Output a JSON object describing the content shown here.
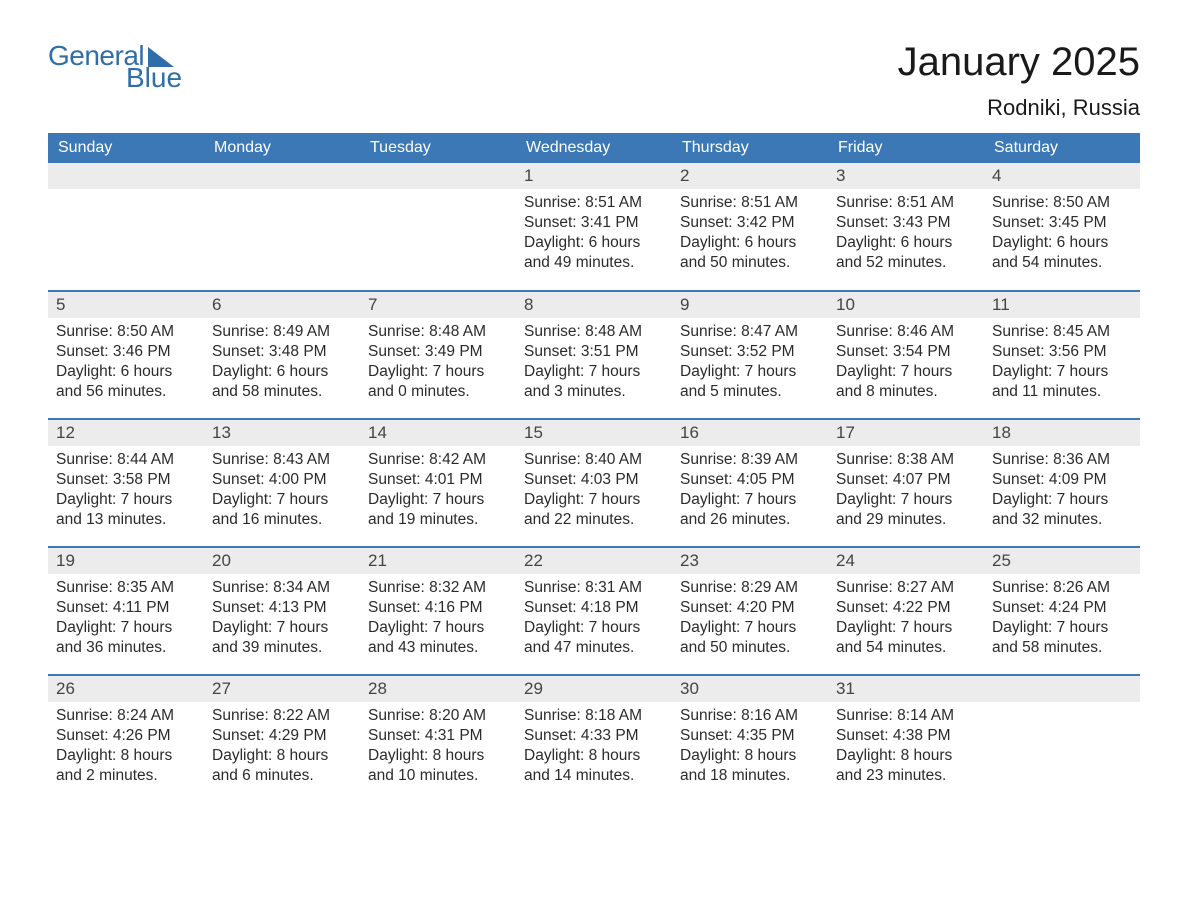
{
  "logo": {
    "word1": "General",
    "word2": "Blue"
  },
  "header": {
    "title": "January 2025",
    "location": "Rodniki, Russia"
  },
  "style": {
    "brand_color": "#3b78b5",
    "logo_color": "#2f6ea8",
    "daynum_bg": "#ececec",
    "page_bg": "#ffffff",
    "text_color": "#2b2b2b",
    "title_fontsize": 40,
    "location_fontsize": 22,
    "header_fontsize": 16,
    "cell_fontsize": 15.5
  },
  "calendar": {
    "type": "table",
    "columns": [
      "Sunday",
      "Monday",
      "Tuesday",
      "Wednesday",
      "Thursday",
      "Friday",
      "Saturday"
    ],
    "first_day_column_index": 3,
    "days": [
      {
        "n": 1,
        "sunrise": "8:51 AM",
        "sunset": "3:41 PM",
        "dl_h": 6,
        "dl_m": 49
      },
      {
        "n": 2,
        "sunrise": "8:51 AM",
        "sunset": "3:42 PM",
        "dl_h": 6,
        "dl_m": 50
      },
      {
        "n": 3,
        "sunrise": "8:51 AM",
        "sunset": "3:43 PM",
        "dl_h": 6,
        "dl_m": 52
      },
      {
        "n": 4,
        "sunrise": "8:50 AM",
        "sunset": "3:45 PM",
        "dl_h": 6,
        "dl_m": 54
      },
      {
        "n": 5,
        "sunrise": "8:50 AM",
        "sunset": "3:46 PM",
        "dl_h": 6,
        "dl_m": 56
      },
      {
        "n": 6,
        "sunrise": "8:49 AM",
        "sunset": "3:48 PM",
        "dl_h": 6,
        "dl_m": 58
      },
      {
        "n": 7,
        "sunrise": "8:48 AM",
        "sunset": "3:49 PM",
        "dl_h": 7,
        "dl_m": 0
      },
      {
        "n": 8,
        "sunrise": "8:48 AM",
        "sunset": "3:51 PM",
        "dl_h": 7,
        "dl_m": 3
      },
      {
        "n": 9,
        "sunrise": "8:47 AM",
        "sunset": "3:52 PM",
        "dl_h": 7,
        "dl_m": 5
      },
      {
        "n": 10,
        "sunrise": "8:46 AM",
        "sunset": "3:54 PM",
        "dl_h": 7,
        "dl_m": 8
      },
      {
        "n": 11,
        "sunrise": "8:45 AM",
        "sunset": "3:56 PM",
        "dl_h": 7,
        "dl_m": 11
      },
      {
        "n": 12,
        "sunrise": "8:44 AM",
        "sunset": "3:58 PM",
        "dl_h": 7,
        "dl_m": 13
      },
      {
        "n": 13,
        "sunrise": "8:43 AM",
        "sunset": "4:00 PM",
        "dl_h": 7,
        "dl_m": 16
      },
      {
        "n": 14,
        "sunrise": "8:42 AM",
        "sunset": "4:01 PM",
        "dl_h": 7,
        "dl_m": 19
      },
      {
        "n": 15,
        "sunrise": "8:40 AM",
        "sunset": "4:03 PM",
        "dl_h": 7,
        "dl_m": 22
      },
      {
        "n": 16,
        "sunrise": "8:39 AM",
        "sunset": "4:05 PM",
        "dl_h": 7,
        "dl_m": 26
      },
      {
        "n": 17,
        "sunrise": "8:38 AM",
        "sunset": "4:07 PM",
        "dl_h": 7,
        "dl_m": 29
      },
      {
        "n": 18,
        "sunrise": "8:36 AM",
        "sunset": "4:09 PM",
        "dl_h": 7,
        "dl_m": 32
      },
      {
        "n": 19,
        "sunrise": "8:35 AM",
        "sunset": "4:11 PM",
        "dl_h": 7,
        "dl_m": 36
      },
      {
        "n": 20,
        "sunrise": "8:34 AM",
        "sunset": "4:13 PM",
        "dl_h": 7,
        "dl_m": 39
      },
      {
        "n": 21,
        "sunrise": "8:32 AM",
        "sunset": "4:16 PM",
        "dl_h": 7,
        "dl_m": 43
      },
      {
        "n": 22,
        "sunrise": "8:31 AM",
        "sunset": "4:18 PM",
        "dl_h": 7,
        "dl_m": 47
      },
      {
        "n": 23,
        "sunrise": "8:29 AM",
        "sunset": "4:20 PM",
        "dl_h": 7,
        "dl_m": 50
      },
      {
        "n": 24,
        "sunrise": "8:27 AM",
        "sunset": "4:22 PM",
        "dl_h": 7,
        "dl_m": 54
      },
      {
        "n": 25,
        "sunrise": "8:26 AM",
        "sunset": "4:24 PM",
        "dl_h": 7,
        "dl_m": 58
      },
      {
        "n": 26,
        "sunrise": "8:24 AM",
        "sunset": "4:26 PM",
        "dl_h": 8,
        "dl_m": 2
      },
      {
        "n": 27,
        "sunrise": "8:22 AM",
        "sunset": "4:29 PM",
        "dl_h": 8,
        "dl_m": 6
      },
      {
        "n": 28,
        "sunrise": "8:20 AM",
        "sunset": "4:31 PM",
        "dl_h": 8,
        "dl_m": 10
      },
      {
        "n": 29,
        "sunrise": "8:18 AM",
        "sunset": "4:33 PM",
        "dl_h": 8,
        "dl_m": 14
      },
      {
        "n": 30,
        "sunrise": "8:16 AM",
        "sunset": "4:35 PM",
        "dl_h": 8,
        "dl_m": 18
      },
      {
        "n": 31,
        "sunrise": "8:14 AM",
        "sunset": "4:38 PM",
        "dl_h": 8,
        "dl_m": 23
      }
    ],
    "labels": {
      "sunrise": "Sunrise",
      "sunset": "Sunset",
      "daylight": "Daylight",
      "hours": "hours",
      "and": "and",
      "minutes": "minutes."
    }
  }
}
